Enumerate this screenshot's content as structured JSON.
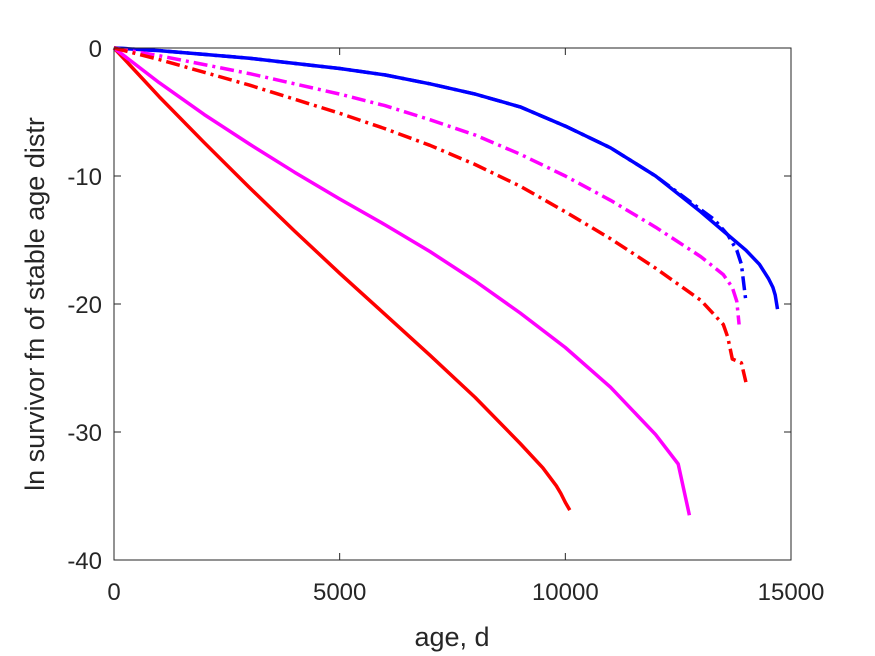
{
  "chart_data": {
    "type": "line",
    "title": "",
    "xlabel": "age, d",
    "ylabel": "ln survivor fn of stable age distr",
    "xlim": [
      0,
      15000
    ],
    "ylim": [
      -40,
      0
    ],
    "xticks": [
      0,
      5000,
      10000,
      15000
    ],
    "xtick_labels": [
      "0",
      "5000",
      "10000",
      "15000"
    ],
    "yticks": [
      0,
      -10,
      -20,
      -30,
      -40
    ],
    "ytick_labels": [
      "0",
      "-10",
      "-20",
      "-30",
      "-40"
    ],
    "grid": false,
    "legend": null,
    "series": [
      {
        "color": "#ff0000",
        "style": "solid",
        "x": [
          0,
          1000,
          2000,
          3000,
          4000,
          5000,
          6000,
          7000,
          8000,
          9000,
          9500,
          9800,
          9900,
          10000,
          10100
        ],
        "y": [
          0,
          -3.8,
          -7.4,
          -10.9,
          -14.3,
          -17.6,
          -20.8,
          -24.0,
          -27.3,
          -30.9,
          -32.8,
          -34.2,
          -34.8,
          -35.5,
          -36.1
        ]
      },
      {
        "color": "#ff00ff",
        "style": "solid",
        "x": [
          0,
          1000,
          2000,
          3000,
          4000,
          5000,
          6000,
          7000,
          8000,
          9000,
          10000,
          11000,
          12000,
          12500,
          12750
        ],
        "y": [
          0,
          -2.7,
          -5.2,
          -7.5,
          -9.7,
          -11.8,
          -13.8,
          -15.9,
          -18.2,
          -20.7,
          -23.4,
          -26.5,
          -30.2,
          -32.5,
          -36.5
        ]
      },
      {
        "color": "#0000ff",
        "style": "solid",
        "x": [
          0,
          1000,
          2000,
          3000,
          4000,
          5000,
          6000,
          7000,
          8000,
          9000,
          10000,
          11000,
          12000,
          13000,
          13500,
          14000,
          14300,
          14500,
          14600,
          14650,
          14700
        ],
        "y": [
          0,
          -0.2,
          -0.5,
          -0.8,
          -1.2,
          -1.6,
          -2.1,
          -2.8,
          -3.6,
          -4.6,
          -6.1,
          -7.8,
          -10.0,
          -12.8,
          -14.3,
          -15.8,
          -16.9,
          -18.0,
          -18.7,
          -19.3,
          -20.4
        ]
      },
      {
        "color": "#0000ff",
        "style": "dashdot",
        "x": [
          0,
          1000,
          2000,
          3000,
          4000,
          5000,
          6000,
          7000,
          8000,
          9000,
          10000,
          11000,
          12000,
          12800,
          13300,
          13600,
          13800,
          13900,
          14000
        ],
        "y": [
          0,
          -0.2,
          -0.5,
          -0.8,
          -1.2,
          -1.6,
          -2.1,
          -2.8,
          -3.6,
          -4.6,
          -6.1,
          -7.8,
          -10.0,
          -12.1,
          -13.4,
          -14.6,
          -15.8,
          -16.9,
          -19.8
        ]
      },
      {
        "color": "#ff00ff",
        "style": "dashdot",
        "x": [
          0,
          1000,
          2000,
          3000,
          4000,
          5000,
          6000,
          7000,
          8000,
          9000,
          10000,
          11000,
          12000,
          13000,
          13500,
          13700,
          13800,
          13850
        ],
        "y": [
          0,
          -0.6,
          -1.3,
          -2.0,
          -2.8,
          -3.6,
          -4.5,
          -5.6,
          -6.8,
          -8.3,
          -10.0,
          -11.9,
          -14.0,
          -16.3,
          -17.7,
          -18.7,
          -19.8,
          -21.6
        ]
      },
      {
        "color": "#ff0000",
        "style": "dashdot",
        "x": [
          0,
          1000,
          2000,
          3000,
          4000,
          5000,
          6000,
          7000,
          8000,
          9000,
          10000,
          11000,
          12000,
          13000,
          13500,
          13600,
          13700,
          13900,
          14000
        ],
        "y": [
          0,
          -0.9,
          -1.9,
          -2.9,
          -4.0,
          -5.1,
          -6.3,
          -7.6,
          -9.1,
          -10.8,
          -12.8,
          -14.9,
          -17.2,
          -19.7,
          -21.6,
          -22.6,
          -24.3,
          -24.6,
          -26.1
        ]
      }
    ]
  }
}
